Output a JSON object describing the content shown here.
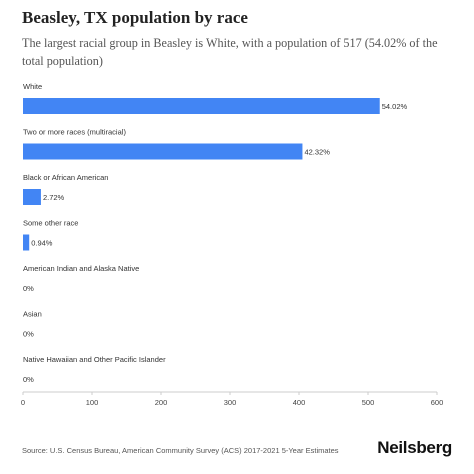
{
  "header": {
    "title": "Beasley, TX population by race",
    "subtitle": "The largest racial group in Beasley is White, with a population of 517 (54.02% of the total population)"
  },
  "footer": {
    "source": "Source: U.S. Census Bureau, American Community Survey (ACS) 2017-2021 5-Year Estimates",
    "brand": "Neilsberg"
  },
  "colors": {
    "bar": "#4285f4",
    "axis": "#cccccc"
  },
  "chart_data": {
    "type": "bar",
    "orientation": "horizontal",
    "categories": [
      "White",
      "Two or more races (multiracial)",
      "Black or African American",
      "Some other race",
      "American Indian and Alaska Native",
      "Asian",
      "Native Hawaiian and Other Pacific Islander"
    ],
    "values": [
      517,
      405,
      26,
      9,
      0,
      0,
      0
    ],
    "value_labels": [
      "54.02%",
      "42.32%",
      "2.72%",
      "0.94%",
      "0%",
      "0%",
      "0%"
    ],
    "xlim": [
      0,
      600
    ],
    "xticks": [
      0,
      100,
      200,
      300,
      400,
      500,
      600
    ],
    "grid": false,
    "legend": "none"
  }
}
